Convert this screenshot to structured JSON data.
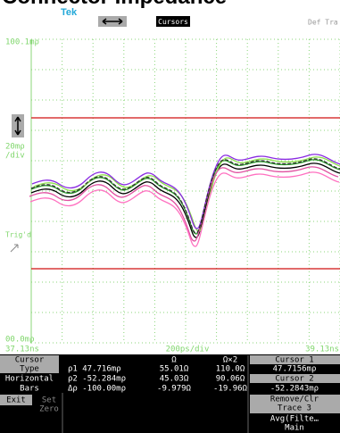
{
  "header": {
    "title": "Connector Impedance",
    "logo": "Tek",
    "cursors_button": "Cursors",
    "right_label": "Def Tra"
  },
  "screen": {
    "top_level": "100.1mρ",
    "scale": "20mρ",
    "scale_unit": "/div",
    "trigger": "Trig'd",
    "bottom_level": "00.0mρ",
    "x_left": "37.13ns",
    "x_scale": "200ps/div",
    "x_right": "39.13ns"
  },
  "readout": {
    "cursor_label": "Cursor",
    "type_label": "Type",
    "horizontal_label": "Horizontal",
    "bars_label": "Bars",
    "col_ohm": "Ω",
    "col_ohm2": "Ω×2",
    "rows": [
      [
        "ρ1 47.716mρ",
        "55.01Ω",
        "110.0Ω"
      ],
      [
        "ρ2 -52.284mρ",
        "45.03Ω",
        "90.06Ω"
      ],
      [
        "Δρ -100.00mρ",
        "-9.979Ω",
        "-19.96Ω"
      ]
    ],
    "cursor1_label": "Cursor 1",
    "cursor1_value": "47.7156mρ",
    "cursor2_label": "Cursor 2",
    "cursor2_value": "-52.2843mρ"
  },
  "menu": {
    "exit": "Exit",
    "set": "Set",
    "zero": "Zero",
    "remove": "Remove/Clr",
    "trace": "Trace 3",
    "avg": "Avg(Filte…",
    "main": "Main"
  }
}
